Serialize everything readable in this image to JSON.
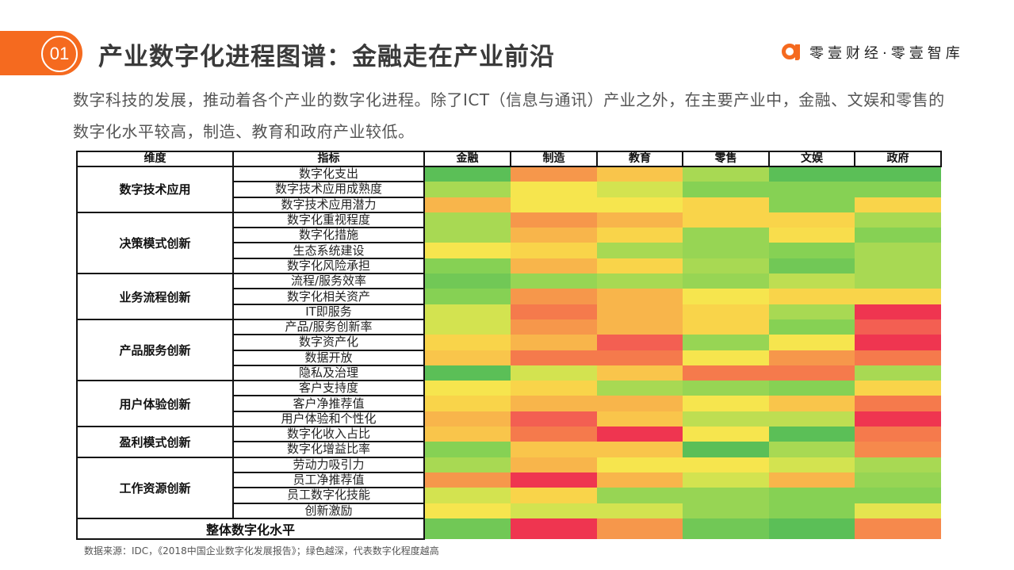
{
  "header": {
    "section_number": "01",
    "title": "产业数字化进程图谱：金融走在产业前沿",
    "brand": "零壹财经·零壹智库",
    "accent_color": "#f56a1f"
  },
  "intro": "数字科技的发展，推动着各个产业的数字化进程。除了ICT（信息与通讯）产业之外，在主要产业中，金融、文娱和零售的数字化水平较高，制造、教育和政府产业较低。",
  "source": "数据来源：IDC，《2018中国企业数字化发展报告》；绿色越深，代表数字化程度越高",
  "table": {
    "col_dimension": "维度",
    "col_indicator": "指标",
    "industries": [
      "金融",
      "制造",
      "教育",
      "零售",
      "文娱",
      "政府"
    ],
    "overall_label": "整体数字化水平"
  },
  "chart_data": {
    "type": "heatmap",
    "title": "产业数字化进程图谱：金融走在产业前沿",
    "x": [
      "金融",
      "制造",
      "教育",
      "零售",
      "文娱",
      "政府"
    ],
    "legend": "绿色越深，代表数字化程度越高 (scale 1=red/lowest … 11=deep green/highest, estimated from cell color)",
    "color_scale": [
      "#ef3550",
      "#f35f52",
      "#f57a4c",
      "#f6974b",
      "#f8b54b",
      "#f9d44a",
      "#f6e54e",
      "#d3e350",
      "#a8d953",
      "#86d154",
      "#5bbf57"
    ],
    "groups": [
      {
        "dimension": "数字技术应用",
        "rows": [
          {
            "indicator": "数字化支出",
            "values": [
              11,
              4,
              5.5,
              9,
              11,
              11
            ]
          },
          {
            "indicator": "数字技术应用成熟度",
            "values": [
              9,
              7,
              8,
              10,
              10,
              10
            ]
          },
          {
            "indicator": "数字技术应用潜力",
            "values": [
              5,
              7,
              7,
              6,
              10,
              6
            ]
          }
        ]
      },
      {
        "dimension": "决策模式创新",
        "rows": [
          {
            "indicator": "数字化重视程度",
            "values": [
              9,
              4,
              5,
              6,
              6,
              9
            ]
          },
          {
            "indicator": "数字化措施",
            "values": [
              9,
              5,
              6,
              9.5,
              6.5,
              10
            ]
          },
          {
            "indicator": "生态系统建设",
            "values": [
              7,
              6,
              9,
              9.5,
              10,
              9
            ]
          },
          {
            "indicator": "数字化风险承担",
            "values": [
              10,
              5,
              6,
              9,
              10.5,
              9
            ]
          }
        ]
      },
      {
        "dimension": "业务流程创新",
        "rows": [
          {
            "indicator": "流程/服务效率",
            "values": [
              10.5,
              9.5,
              9,
              9.5,
              8.5,
              9
            ]
          },
          {
            "indicator": "数字化相关资产",
            "values": [
              10,
              4,
              5,
              7,
              6,
              6
            ]
          },
          {
            "indicator": "IT即服务",
            "values": [
              8,
              3,
              5,
              6,
              9,
              1
            ]
          }
        ]
      },
      {
        "dimension": "产品服务创新",
        "rows": [
          {
            "indicator": "产品/服务创新率",
            "values": [
              8,
              4,
              5,
              6,
              10,
              2
            ]
          },
          {
            "indicator": "数字资产化",
            "values": [
              6,
              5,
              2,
              9.5,
              7,
              1
            ]
          },
          {
            "indicator": "数据开放",
            "values": [
              5.5,
              3,
              3,
              7,
              4,
              3
            ]
          },
          {
            "indicator": "隐私及治理",
            "values": [
              11,
              8,
              5.5,
              3,
              3,
              9
            ]
          }
        ]
      },
      {
        "dimension": "用户体验创新",
        "rows": [
          {
            "indicator": "客户支持度",
            "values": [
              7,
              6,
              9,
              9.5,
              10,
              6
            ]
          },
          {
            "indicator": "客户净推荐值",
            "values": [
              6,
              5,
              5,
              7,
              5.5,
              3
            ]
          },
          {
            "indicator": "用户体验和个性化",
            "values": [
              5,
              2,
              5.5,
              8.5,
              8.5,
              1
            ]
          }
        ]
      },
      {
        "dimension": "盈利模式创新",
        "rows": [
          {
            "indicator": "数字化收入占比",
            "values": [
              5.5,
              3,
              1,
              7,
              11,
              3
            ]
          },
          {
            "indicator": "数字化增益比率",
            "values": [
              10,
              5.5,
              5.5,
              11,
              9,
              3.5
            ]
          }
        ]
      },
      {
        "dimension": "工作资源创新",
        "rows": [
          {
            "indicator": "劳动力吸引力",
            "values": [
              9,
              5,
              7,
              7,
              8,
              9
            ]
          },
          {
            "indicator": "员工净推荐值",
            "values": [
              4,
              1,
              5,
              8,
              5,
              9.5
            ]
          },
          {
            "indicator": "员工数字化技能",
            "values": [
              8,
              6,
              9.5,
              9.5,
              10,
              10
            ]
          },
          {
            "indicator": "创新激励",
            "values": [
              7,
              8,
              8,
              9.5,
              10,
              7.5
            ]
          }
        ]
      }
    ],
    "overall": {
      "indicator": "整体数字化水平",
      "values": [
        10.5,
        1,
        4,
        10.5,
        11,
        3.5
      ]
    }
  }
}
